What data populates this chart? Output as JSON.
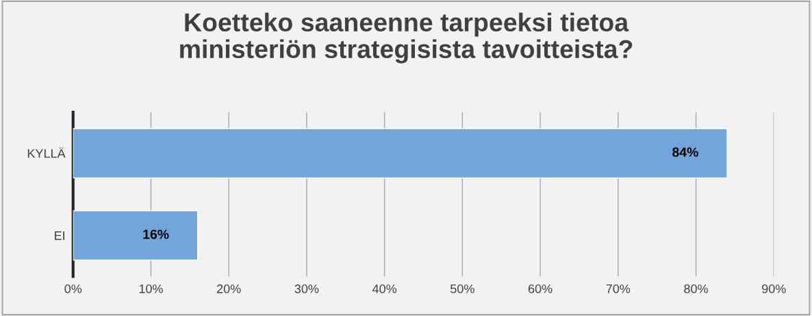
{
  "chart_data": {
    "type": "bar",
    "orientation": "horizontal",
    "title": "Koetteko saaneenne tarpeeksi tietoa\nministeriön strategisista tavoitteista?",
    "categories": [
      "KYLLÄ",
      "EI"
    ],
    "values": [
      84,
      16
    ],
    "color": "#70a6dc",
    "value_labels": [
      "84%",
      "16%"
    ],
    "xlim": [
      0,
      90
    ],
    "xticks": [
      {
        "value": 0,
        "label": "0%"
      },
      {
        "value": 10,
        "label": "10%"
      },
      {
        "value": 20,
        "label": "20%"
      },
      {
        "value": 30,
        "label": "30%"
      },
      {
        "value": 40,
        "label": "40%"
      },
      {
        "value": 50,
        "label": "50%"
      },
      {
        "value": 60,
        "label": "60%"
      },
      {
        "value": 70,
        "label": "70%"
      },
      {
        "value": 80,
        "label": "80%"
      },
      {
        "value": 90,
        "label": "90%"
      }
    ],
    "grid": "x"
  }
}
